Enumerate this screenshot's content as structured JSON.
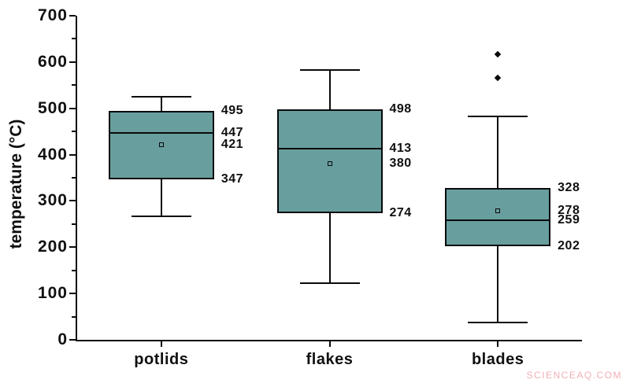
{
  "watermark": {
    "text": "SCIENCEAQ.COM",
    "color": "#f0afb5"
  },
  "chart_data": {
    "type": "box",
    "title": "",
    "xlabel": "",
    "ylabel": "temperature (°C)",
    "ylim": [
      0,
      700
    ],
    "yticks": [
      0,
      100,
      200,
      300,
      400,
      500,
      600,
      700
    ],
    "yminor_step": 50,
    "grid": false,
    "legend": false,
    "box_fill": "#689e9e",
    "line_color": "#0a0a0a",
    "categories": [
      "potlids",
      "flakes",
      "blades"
    ],
    "series": [
      {
        "category": "potlids",
        "whisker_low": 267,
        "q1": 347,
        "median": 447,
        "mean": 421,
        "q3": 495,
        "whisker_high": 525,
        "outliers": [],
        "value_labels": [
          495,
          447,
          421,
          347
        ]
      },
      {
        "category": "flakes",
        "whisker_low": 123,
        "q1": 274,
        "median": 413,
        "mean": 380,
        "q3": 498,
        "whisker_high": 583,
        "outliers": [],
        "value_labels": [
          498,
          413,
          380,
          274
        ]
      },
      {
        "category": "blades",
        "whisker_low": 38,
        "q1": 202,
        "median": 259,
        "mean": 278,
        "q3": 328,
        "whisker_high": 483,
        "outliers": [
          617,
          565
        ],
        "value_labels": [
          328,
          278,
          259,
          202
        ]
      }
    ]
  }
}
